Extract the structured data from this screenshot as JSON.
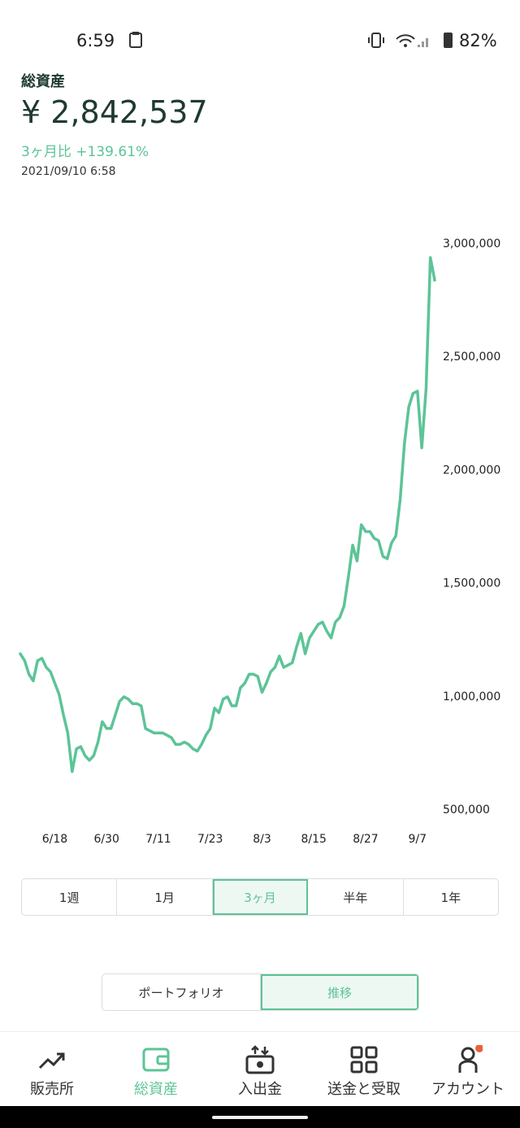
{
  "status_bar": {
    "time": "6:59",
    "battery": "82%"
  },
  "header": {
    "title": "総資産",
    "total": "¥ 2,842,537",
    "change": "3ヶ月比 +139.61%",
    "timestamp": "2021/09/10 6:58"
  },
  "chart_data": {
    "type": "line",
    "color": "#5cc497",
    "categories": [
      null,
      null,
      null,
      null,
      null,
      null,
      null,
      null,
      "6/18",
      null,
      null,
      null,
      null,
      null,
      null,
      null,
      null,
      null,
      null,
      null,
      "6/30",
      null,
      null,
      null,
      null,
      null,
      null,
      null,
      null,
      null,
      null,
      null,
      "7/11",
      null,
      null,
      null,
      null,
      null,
      null,
      null,
      null,
      null,
      null,
      null,
      "7/23",
      null,
      null,
      null,
      null,
      null,
      null,
      null,
      null,
      null,
      null,
      null,
      "8/3",
      null,
      null,
      null,
      null,
      null,
      null,
      null,
      null,
      null,
      null,
      null,
      "8/15",
      null,
      null,
      null,
      null,
      null,
      null,
      null,
      null,
      null,
      null,
      null,
      "8/27",
      null,
      null,
      null,
      null,
      null,
      null,
      null,
      null,
      null,
      null,
      null,
      "9/7",
      null,
      null,
      null,
      null
    ],
    "values": [
      1190000,
      1160000,
      1100000,
      1070000,
      1160000,
      1170000,
      1130000,
      1110000,
      1060000,
      1010000,
      920000,
      840000,
      670000,
      770000,
      780000,
      740000,
      720000,
      740000,
      800000,
      890000,
      860000,
      860000,
      920000,
      980000,
      1000000,
      990000,
      970000,
      970000,
      960000,
      860000,
      850000,
      840000,
      840000,
      840000,
      830000,
      820000,
      790000,
      790000,
      800000,
      790000,
      770000,
      760000,
      790000,
      830000,
      860000,
      950000,
      930000,
      990000,
      1000000,
      960000,
      960000,
      1040000,
      1060000,
      1100000,
      1100000,
      1090000,
      1020000,
      1060000,
      1110000,
      1130000,
      1180000,
      1130000,
      1140000,
      1150000,
      1220000,
      1280000,
      1190000,
      1260000,
      1290000,
      1320000,
      1330000,
      1290000,
      1260000,
      1330000,
      1350000,
      1400000,
      1530000,
      1670000,
      1600000,
      1760000,
      1730000,
      1730000,
      1700000,
      1690000,
      1620000,
      1610000,
      1680000,
      1710000,
      1870000,
      2120000,
      2280000,
      2340000,
      2350000,
      2100000,
      2360000,
      2940000,
      2840000
    ],
    "ylim": [
      500000,
      3000000
    ],
    "yticks": [
      {
        "value": 500000,
        "label": "500,000"
      },
      {
        "value": 1000000,
        "label": "1,000,000"
      },
      {
        "value": 1500000,
        "label": "1,500,000"
      },
      {
        "value": 2000000,
        "label": "2,000,000"
      },
      {
        "value": 2500000,
        "label": "2,500,000"
      },
      {
        "value": 3000000,
        "label": "3,000,000"
      }
    ],
    "grid": false
  },
  "range_tabs": [
    "1週",
    "1月",
    "3ヶ月",
    "半年",
    "1年"
  ],
  "view_toggle": [
    "ポートフォリオ",
    "推移"
  ],
  "nav": [
    "販売所",
    "総資産",
    "入出金",
    "送金と受取",
    "アカウント"
  ]
}
